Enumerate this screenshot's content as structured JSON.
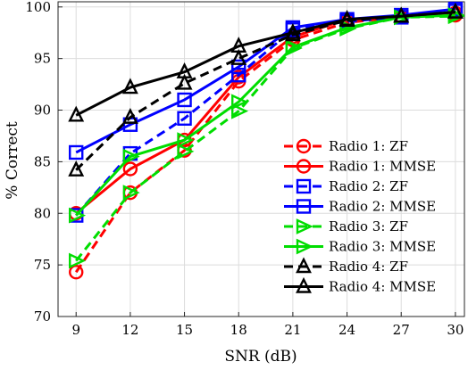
{
  "chart_data": {
    "type": "line",
    "xlabel": "SNR (dB)",
    "ylabel": "% Correct",
    "x": [
      9,
      12,
      15,
      18,
      21,
      24,
      27,
      30
    ],
    "x_ticks": [
      "9",
      "12",
      "15",
      "18",
      "21",
      "24",
      "27",
      "30"
    ],
    "y_ticks": [
      "70",
      "75",
      "80",
      "85",
      "90",
      "95",
      "100"
    ],
    "xlim": [
      8,
      30.5
    ],
    "ylim": [
      70,
      100.5
    ],
    "grid": true,
    "legend_position": "lower-right",
    "series": [
      {
        "name": "Radio 1: ZF",
        "color": "#ff0000",
        "dash": "dashed",
        "marker": "circle",
        "values": [
          74.3,
          82.0,
          86.1,
          92.8,
          96.8,
          98.5,
          99.0,
          99.2
        ]
      },
      {
        "name": "Radio 1: MMSE",
        "color": "#ff0000",
        "dash": "solid",
        "marker": "circle",
        "values": [
          80.0,
          84.3,
          87.1,
          93.2,
          97.1,
          98.8,
          99.1,
          99.4
        ]
      },
      {
        "name": "Radio 2: ZF",
        "color": "#0000ff",
        "dash": "dashed",
        "marker": "square",
        "values": [
          79.8,
          85.8,
          89.2,
          93.4,
          97.8,
          98.6,
          99.0,
          99.6
        ]
      },
      {
        "name": "Radio 2: MMSE",
        "color": "#0000ff",
        "dash": "solid",
        "marker": "square",
        "values": [
          85.9,
          88.6,
          91.0,
          94.2,
          98.0,
          98.8,
          99.2,
          99.8
        ]
      },
      {
        "name": "Radio 3: ZF",
        "color": "#00dd00",
        "dash": "dashed",
        "marker": "triangle-right",
        "values": [
          75.4,
          82.0,
          86.0,
          89.9,
          96.0,
          97.9,
          99.0,
          99.1
        ]
      },
      {
        "name": "Radio 3: MMSE",
        "color": "#00dd00",
        "dash": "solid",
        "marker": "triangle-right",
        "values": [
          79.8,
          85.5,
          87.1,
          90.8,
          96.1,
          98.0,
          99.0,
          99.2
        ]
      },
      {
        "name": "Radio 4: ZF",
        "color": "#000000",
        "dash": "dashed",
        "marker": "triangle-up",
        "values": [
          84.2,
          89.3,
          92.6,
          95.0,
          97.3,
          98.7,
          99.1,
          99.5
        ]
      },
      {
        "name": "Radio 4: MMSE",
        "color": "#000000",
        "dash": "solid",
        "marker": "triangle-up",
        "values": [
          89.5,
          92.2,
          93.7,
          96.2,
          97.5,
          98.8,
          99.1,
          99.5
        ]
      }
    ]
  }
}
